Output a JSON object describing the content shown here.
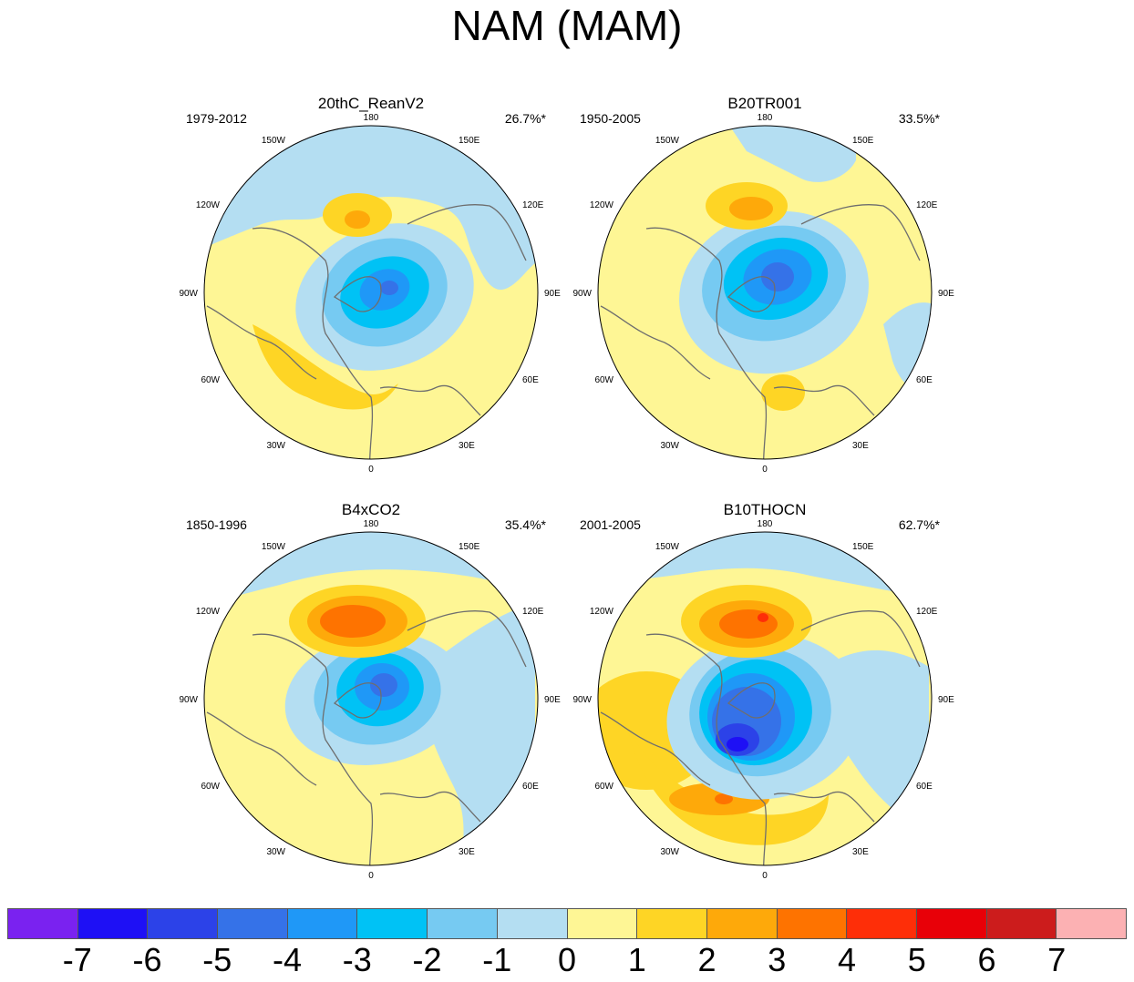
{
  "title": "NAM (MAM)",
  "colors": {
    "levels": [
      "#7a22f0",
      "#1e10f5",
      "#2c42e8",
      "#3572e8",
      "#1f98f7",
      "#00c2f5",
      "#76caf2",
      "#b4def2",
      "#fef695",
      "#fed525",
      "#fea90a",
      "#fe7300",
      "#fe2e08",
      "#e80008",
      "#cc1c1c",
      "#fcb1b3"
    ],
    "coast": "#6e6e6e"
  },
  "panels": [
    {
      "title": "20thC_ReanV2",
      "period": "1979-2012",
      "variance": "26.7%*"
    },
    {
      "title": "B20TR001",
      "period": "1950-2005",
      "variance": "33.5%*"
    },
    {
      "title": "B4xCO2",
      "period": "1850-1996",
      "variance": "35.4%*"
    },
    {
      "title": "B10THOCN",
      "period": "2001-2005",
      "variance": "62.7%*"
    }
  ],
  "longitude_labels": {
    "top": "180",
    "top_left": "150W",
    "top_right": "150E",
    "upper_left": "120W",
    "upper_right": "120E",
    "left": "90W",
    "right": "90E",
    "lower_left": "60W",
    "lower_right": "60E",
    "bottom_left": "30W",
    "bottom_right": "30E",
    "bottom": "0"
  },
  "colorbar": {
    "labels": [
      "-7",
      "-6",
      "-5",
      "-4",
      "-3",
      "-2",
      "-1",
      "0",
      "1",
      "2",
      "3",
      "4",
      "5",
      "6",
      "7"
    ]
  }
}
